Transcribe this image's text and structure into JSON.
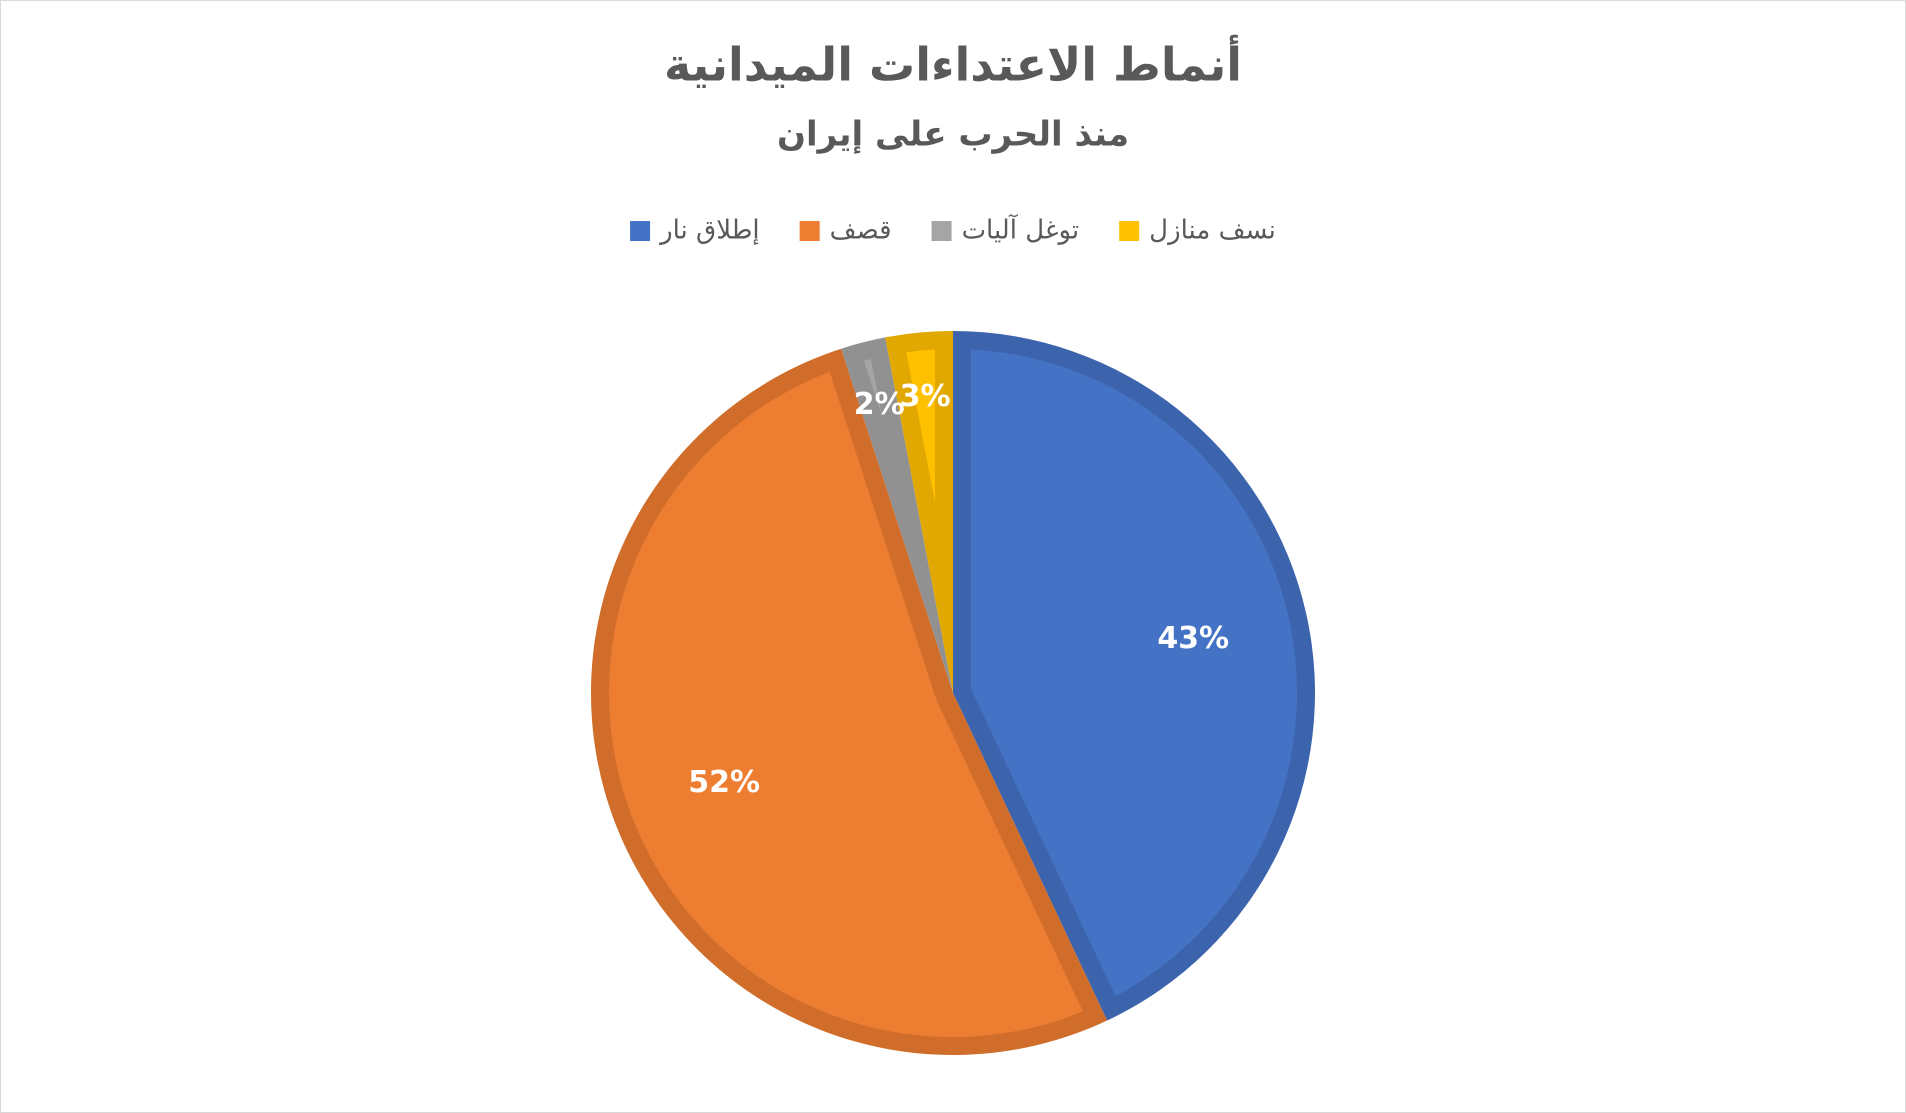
{
  "chart_data": {
    "type": "pie",
    "title": "أنماط الاعتداءات الميدانية",
    "subtitle": "منذ الحرب على إيران",
    "legend_position": "top",
    "series": [
      {
        "name": "إطلاق نار",
        "color": "#4472c4",
        "values": [
          43
        ],
        "value_labels": [
          "43%"
        ]
      },
      {
        "name": "قصف",
        "color": "#ed7d31",
        "values": [
          52
        ],
        "value_labels": [
          "52%"
        ]
      },
      {
        "name": "توغل آليات",
        "color": "#a5a5a5",
        "values": [
          2
        ],
        "value_labels": [
          "2%"
        ]
      },
      {
        "name": "نسف منازل",
        "color": "#ffc000",
        "values": [
          3
        ],
        "value_labels": [
          "3%"
        ]
      }
    ]
  }
}
